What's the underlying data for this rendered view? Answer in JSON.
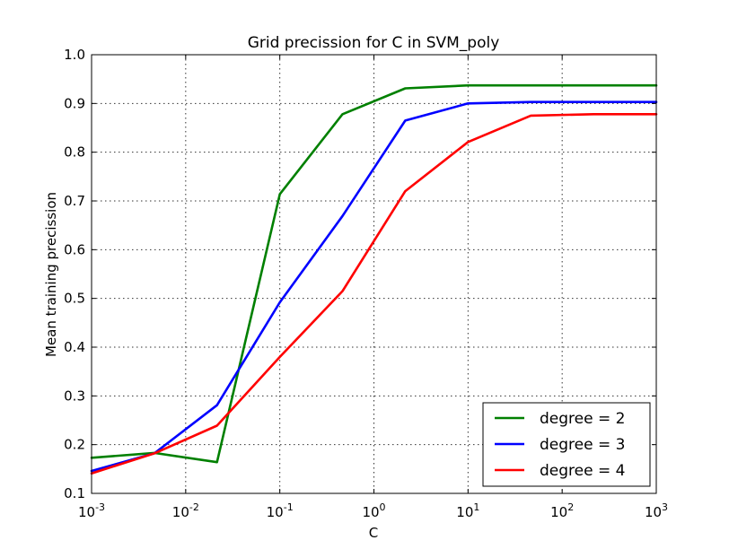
{
  "chart_data": {
    "type": "line",
    "title": "Grid precission for C in SVM_poly",
    "xlabel": "C",
    "ylabel": "Mean training precission",
    "xscale": "log",
    "xlim": [
      0.001,
      1000
    ],
    "ylim": [
      0.1,
      1.0
    ],
    "grid": true,
    "legend_position": "lower-right",
    "x_ticks": [
      {
        "value": 0.001,
        "base": "10",
        "exp": "-3"
      },
      {
        "value": 0.01,
        "base": "10",
        "exp": "-2"
      },
      {
        "value": 0.1,
        "base": "10",
        "exp": "-1"
      },
      {
        "value": 1,
        "base": "10",
        "exp": "0"
      },
      {
        "value": 10,
        "base": "10",
        "exp": "1"
      },
      {
        "value": 100,
        "base": "10",
        "exp": "2"
      },
      {
        "value": 1000,
        "base": "10",
        "exp": "3"
      }
    ],
    "y_ticks": [
      {
        "value": 0.1,
        "label": "0.1"
      },
      {
        "value": 0.2,
        "label": "0.2"
      },
      {
        "value": 0.3,
        "label": "0.3"
      },
      {
        "value": 0.4,
        "label": "0.4"
      },
      {
        "value": 0.5,
        "label": "0.5"
      },
      {
        "value": 0.6,
        "label": "0.6"
      },
      {
        "value": 0.7,
        "label": "0.7"
      },
      {
        "value": 0.8,
        "label": "0.8"
      },
      {
        "value": 0.9,
        "label": "0.9"
      },
      {
        "value": 1.0,
        "label": "1.0"
      }
    ],
    "x": [
      0.001,
      0.00464,
      0.0215,
      0.1,
      0.464,
      2.15,
      10,
      46.4,
      215,
      1000
    ],
    "series": [
      {
        "name": "degree = 2",
        "color": "#008000",
        "values": [
          0.173,
          0.183,
          0.164,
          0.714,
          0.878,
          0.931,
          0.937,
          0.937,
          0.937,
          0.937
        ]
      },
      {
        "name": "degree = 3",
        "color": "#0000ff",
        "values": [
          0.146,
          0.182,
          0.281,
          0.492,
          0.669,
          0.865,
          0.9,
          0.903,
          0.903,
          0.903
        ]
      },
      {
        "name": "degree = 4",
        "color": "#ff0000",
        "values": [
          0.141,
          0.182,
          0.239,
          0.38,
          0.515,
          0.72,
          0.821,
          0.875,
          0.878,
          0.878
        ]
      }
    ]
  }
}
